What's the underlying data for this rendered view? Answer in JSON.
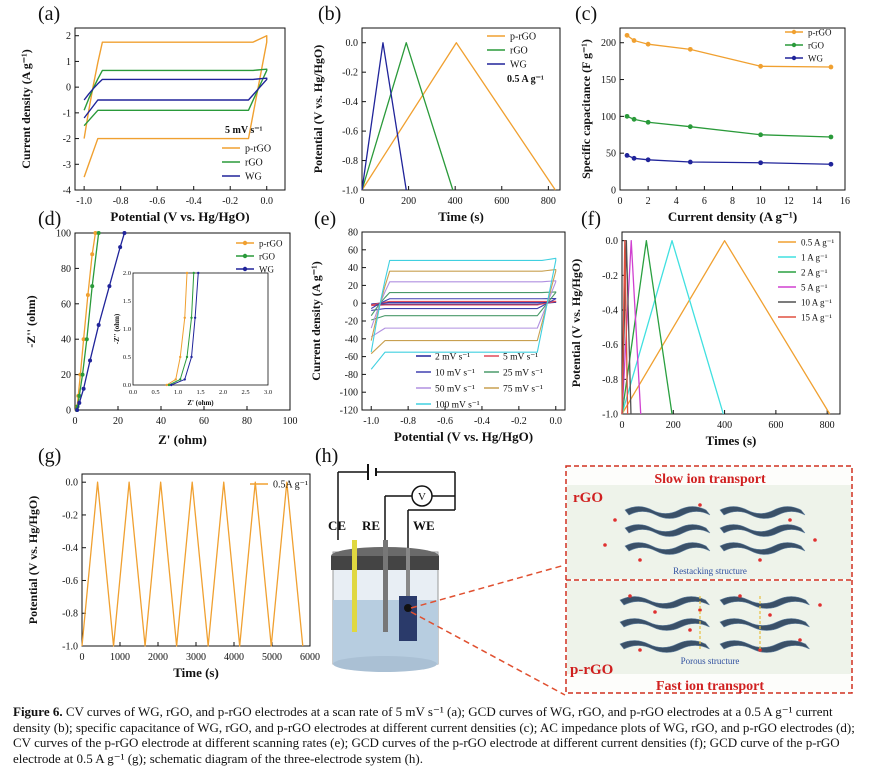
{
  "figure": {
    "caption_label": "Figure 6.",
    "caption_text": "CV curves of WG, rGO, and p-rGO electrodes at a scan rate of 5 mV s⁻¹ (a); GCD curves of WG, rGO, and p-rGO electrodes at a 0.5 A g⁻¹ current density (b); specific capacitance of WG, rGO, and p-rGO electrodes at different current densities (c); AC impedance plots of WG, rGO, and p-rGO electrodes (d); CV curves of the p-rGO electrode at different scanning rates (e); GCD curves of the p-rGO electrode at different current densities (f); GCD curve of the p-rGO electrode at 0.5 A g⁻¹ (g); schematic diagram of the three-electrode system (h)."
  },
  "colors": {
    "prgo": "#f0a030",
    "rgo": "#2a9a3a",
    "wg": "#20249a",
    "e5": "#e04a5a",
    "e10": "#4040b0",
    "e25": "#4a9a6a",
    "e50": "#b090e0",
    "e75": "#c8a050",
    "e100": "#40d0e0",
    "f1": "#40e0e0",
    "f2": "#2aa040",
    "f5": "#d040d0",
    "f10": "#505050",
    "f15": "#e05040"
  },
  "panels": {
    "a": {
      "label": "(a)",
      "xlabel": "Potential (V vs. Hg/HgO)",
      "ylabel": "Current density (A g⁻¹)",
      "xticks": [
        "-1.0",
        "-0.8",
        "-0.6",
        "-0.4",
        "-0.2",
        "0.0"
      ],
      "yticks": [
        "2",
        "1",
        "0",
        "-1",
        "-2",
        "-3",
        "-4"
      ],
      "annotation": "5 mV s⁻¹",
      "legend": [
        "p-rGO",
        "rGO",
        "WG"
      ]
    },
    "b": {
      "label": "(b)",
      "xlabel": "Time (s)",
      "ylabel": "Potential (V vs. Hg/HgO)",
      "xticks": [
        "0",
        "200",
        "400",
        "600",
        "800"
      ],
      "yticks": [
        "0.0",
        "-0.2",
        "-0.4",
        "-0.6",
        "-0.8",
        "-1.0"
      ],
      "annotation": "0.5 A g⁻¹",
      "legend": [
        "p-rGO",
        "rGO",
        "WG"
      ]
    },
    "c": {
      "label": "(c)",
      "xlabel": "Current density (A g⁻¹)",
      "ylabel": "Specific capacitance (F g⁻¹)",
      "xticks": [
        "0",
        "2",
        "4",
        "6",
        "8",
        "10",
        "12",
        "14",
        "16"
      ],
      "yticks": [
        "200",
        "150",
        "100",
        "50",
        "0"
      ],
      "legend": [
        "p-rGO",
        "rGO",
        "WG"
      ]
    },
    "d": {
      "label": "(d)",
      "xlabel": "Z' (ohm)",
      "ylabel": "-Z'' (ohm)",
      "xticks": [
        "0",
        "20",
        "40",
        "60",
        "80",
        "100"
      ],
      "yticks": [
        "100",
        "80",
        "60",
        "40",
        "20",
        "0"
      ],
      "inset_xlabel": "Z' (ohm)",
      "inset_ylabel": "-Z'' (ohm)",
      "inset_xticks": [
        "0.0",
        "0.5",
        "1.0",
        "1.5",
        "2.0",
        "2.5",
        "3.0"
      ],
      "inset_yticks": [
        "2.0",
        "1.5",
        "1.0",
        "0.5",
        "0.0"
      ],
      "legend": [
        "p-rGO",
        "rGO",
        "WG"
      ]
    },
    "e": {
      "label": "(e)",
      "xlabel": "Potential (V vs. Hg/HgO)",
      "ylabel": "Current density (A g⁻¹)",
      "xticks": [
        "-1.0",
        "-0.8",
        "-0.6",
        "-0.4",
        "-0.2",
        "0.0"
      ],
      "yticks": [
        "80",
        "60",
        "40",
        "20",
        "0",
        "-20",
        "-40",
        "-60",
        "-80",
        "-100",
        "-120"
      ],
      "legend": [
        "2 mV s⁻¹",
        "5 mV s⁻¹",
        "10 mV s⁻¹",
        "25 mV s⁻¹",
        "50 mV s⁻¹",
        "75 mV s⁻¹",
        "100 mV s⁻¹"
      ]
    },
    "f": {
      "label": "(f)",
      "xlabel": "Times (s)",
      "ylabel": "Potential (V vs. Hg/HgO)",
      "xticks": [
        "0",
        "200",
        "400",
        "600",
        "800"
      ],
      "yticks": [
        "0.0",
        "-0.2",
        "-0.4",
        "-0.6",
        "-0.8",
        "-1.0"
      ],
      "legend": [
        "0.5 A g⁻¹",
        "1 A g⁻¹",
        "2 A g⁻¹",
        "5 A g⁻¹",
        "10 A g⁻¹",
        "15 A g⁻¹"
      ]
    },
    "g": {
      "label": "(g)",
      "xlabel": "Time (s)",
      "ylabel": "Potential (V vs. Hg/HgO)",
      "xticks": [
        "0",
        "1000",
        "2000",
        "3000",
        "4000",
        "5000",
        "6000"
      ],
      "yticks": [
        "0.0",
        "-0.2",
        "-0.4",
        "-0.6",
        "-0.8",
        "-1.0"
      ],
      "legend": [
        "0.5A g⁻¹"
      ]
    },
    "h": {
      "label": "(h)",
      "ce": "CE",
      "re": "RE",
      "we": "WE",
      "voltmeter": "V",
      "rgo_label": "rGO",
      "prgo_label": "p-rGO",
      "slow": "Slow ion transport",
      "fast": "Fast ion transport",
      "restacking": "Restacking structure",
      "porous": "Porous structure"
    }
  },
  "chart_data": [
    {
      "panel": "a",
      "type": "line",
      "title": "",
      "xlabel": "Potential (V vs. Hg/HgO)",
      "ylabel": "Current density (A g⁻¹)",
      "xlim": [
        -1.05,
        0.1
      ],
      "ylim": [
        -4,
        2.3
      ],
      "series": [
        {
          "name": "p-rGO",
          "upper": 1.75,
          "lower": -2.0,
          "tip_high": 2.0,
          "tip_low": -3.5
        },
        {
          "name": "rGO",
          "upper": 0.65,
          "lower": -0.9,
          "tip_high": 0.7,
          "tip_low": -1.5
        },
        {
          "name": "WG",
          "upper": 0.3,
          "lower": -0.5,
          "tip_high": 0.35,
          "tip_low": -1.2
        }
      ]
    },
    {
      "panel": "b",
      "type": "line",
      "title": "",
      "xlabel": "Time (s)",
      "ylabel": "Potential (V vs. Hg/HgO)",
      "xlim": [
        0,
        850
      ],
      "ylim": [
        -1,
        0.1
      ],
      "series": [
        {
          "name": "p-rGO",
          "x": [
            0,
            405,
            830
          ],
          "y": [
            -1,
            0,
            -1
          ]
        },
        {
          "name": "rGO",
          "x": [
            0,
            190,
            390
          ],
          "y": [
            -1,
            0,
            -1
          ]
        },
        {
          "name": "WG",
          "x": [
            0,
            90,
            190
          ],
          "y": [
            -1,
            0,
            -1
          ]
        }
      ]
    },
    {
      "panel": "c",
      "type": "line",
      "title": "",
      "xlabel": "Current density (A g⁻¹)",
      "ylabel": "Specific capacitance (F g⁻¹)",
      "xlim": [
        0,
        16
      ],
      "ylim": [
        0,
        220
      ],
      "series": [
        {
          "name": "p-rGO",
          "x": [
            0.5,
            1,
            2,
            5,
            10,
            15
          ],
          "y": [
            210,
            203,
            198,
            191,
            168,
            167
          ]
        },
        {
          "name": "rGO",
          "x": [
            0.5,
            1,
            2,
            5,
            10,
            15
          ],
          "y": [
            100,
            96,
            92,
            86,
            75,
            72
          ]
        },
        {
          "name": "WG",
          "x": [
            0.5,
            1,
            2,
            5,
            10,
            15
          ],
          "y": [
            47,
            43,
            41,
            38,
            37,
            35
          ]
        }
      ]
    },
    {
      "panel": "d",
      "type": "scatter",
      "title": "",
      "xlabel": "Z' (ohm)",
      "ylabel": "-Z'' (ohm)",
      "xlim": [
        0,
        100
      ],
      "ylim": [
        0,
        100
      ],
      "series": [
        {
          "name": "p-rGO",
          "x": [
            0.8,
            1,
            1.5,
            2.5,
            4,
            6,
            8,
            9.5
          ],
          "y": [
            0,
            2,
            8,
            20,
            40,
            65,
            88,
            100
          ]
        },
        {
          "name": "rGO",
          "x": [
            0.9,
            1.2,
            2,
            3.5,
            5.5,
            8,
            11
          ],
          "y": [
            0,
            2,
            8,
            20,
            40,
            70,
            100
          ]
        },
        {
          "name": "WG",
          "x": [
            1,
            2,
            4,
            7,
            11,
            16,
            21,
            23
          ],
          "y": [
            0,
            4,
            12,
            28,
            48,
            70,
            92,
            100
          ]
        }
      ]
    },
    {
      "panel": "e",
      "type": "line",
      "title": "",
      "xlabel": "Potential (V vs. Hg/HgO)",
      "ylabel": "Current density (A g⁻¹)",
      "xlim": [
        -1.05,
        0.05
      ],
      "ylim": [
        -120,
        80
      ],
      "series": [
        {
          "name": "2 mV s⁻¹",
          "upper": 1,
          "lower": -1
        },
        {
          "name": "5 mV s⁻¹",
          "upper": 2,
          "lower": -2
        },
        {
          "name": "10 mV s⁻¹",
          "upper": 5,
          "lower": -6
        },
        {
          "name": "25 mV s⁻¹",
          "upper": 12,
          "lower": -14
        },
        {
          "name": "50 mV s⁻¹",
          "upper": 24,
          "lower": -28
        },
        {
          "name": "75 mV s⁻¹",
          "upper": 36,
          "lower": -42
        },
        {
          "name": "100 mV s⁻¹",
          "upper": 48,
          "lower": -55
        }
      ]
    },
    {
      "panel": "f",
      "type": "line",
      "title": "",
      "xlabel": "Times (s)",
      "ylabel": "Potential (V vs. Hg/HgO)",
      "xlim": [
        0,
        850
      ],
      "ylim": [
        -1,
        0.05
      ],
      "series": [
        {
          "name": "0.5 A g⁻¹",
          "x": [
            0,
            400,
            810
          ],
          "y": [
            -1,
            0,
            -1
          ]
        },
        {
          "name": "1 A g⁻¹",
          "x": [
            0,
            195,
            395
          ],
          "y": [
            -1,
            0,
            -1
          ]
        },
        {
          "name": "2 A g⁻¹",
          "x": [
            0,
            95,
            195
          ],
          "y": [
            -1,
            0,
            -1
          ]
        },
        {
          "name": "5 A g⁻¹",
          "x": [
            0,
            36,
            73
          ],
          "y": [
            -1,
            0,
            -1
          ]
        },
        {
          "name": "10 A g⁻¹",
          "x": [
            0,
            17,
            35
          ],
          "y": [
            -1,
            0,
            -1
          ]
        },
        {
          "name": "15 A g⁻¹",
          "x": [
            0,
            11,
            22
          ],
          "y": [
            -1,
            0,
            -1
          ]
        }
      ]
    },
    {
      "panel": "g",
      "type": "line",
      "title": "",
      "xlabel": "Time (s)",
      "ylabel": "Potential (V vs. Hg/HgO)",
      "xlim": [
        0,
        6000
      ],
      "ylim": [
        -1,
        0.05
      ],
      "series": [
        {
          "name": "0.5A g⁻¹",
          "cycle_period": 830,
          "peak_offset": 410,
          "cycles": 7
        }
      ]
    }
  ]
}
